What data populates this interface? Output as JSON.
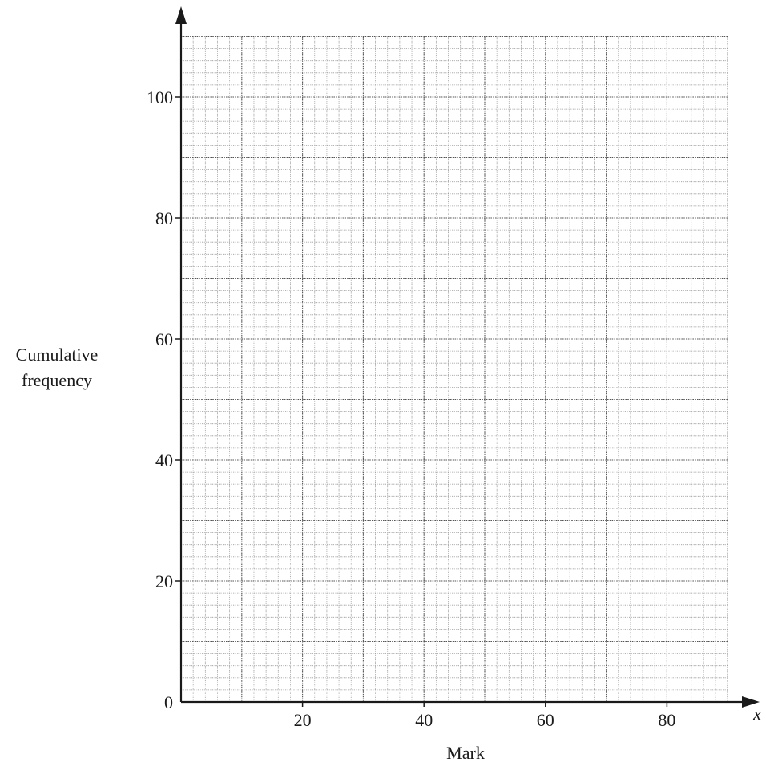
{
  "chart_data": {
    "type": "scatter",
    "title": "",
    "xlabel": "Mark",
    "ylabel_lines": [
      "Cumulative",
      "frequency"
    ],
    "x_axis_variable": "x",
    "xlim": [
      0,
      90
    ],
    "ylim": [
      0,
      110
    ],
    "x_ticks": [
      20,
      40,
      60,
      80
    ],
    "y_ticks": [
      0,
      20,
      40,
      60,
      80,
      100
    ],
    "grid": true,
    "grid_minor_x": 2,
    "grid_major_x": 10,
    "grid_minor_y": 2,
    "grid_major_y": 10,
    "series": []
  },
  "colors": {
    "axis": "#1a1a1a",
    "grid_minor": "#9a9a9a",
    "grid_major": "#555555"
  }
}
